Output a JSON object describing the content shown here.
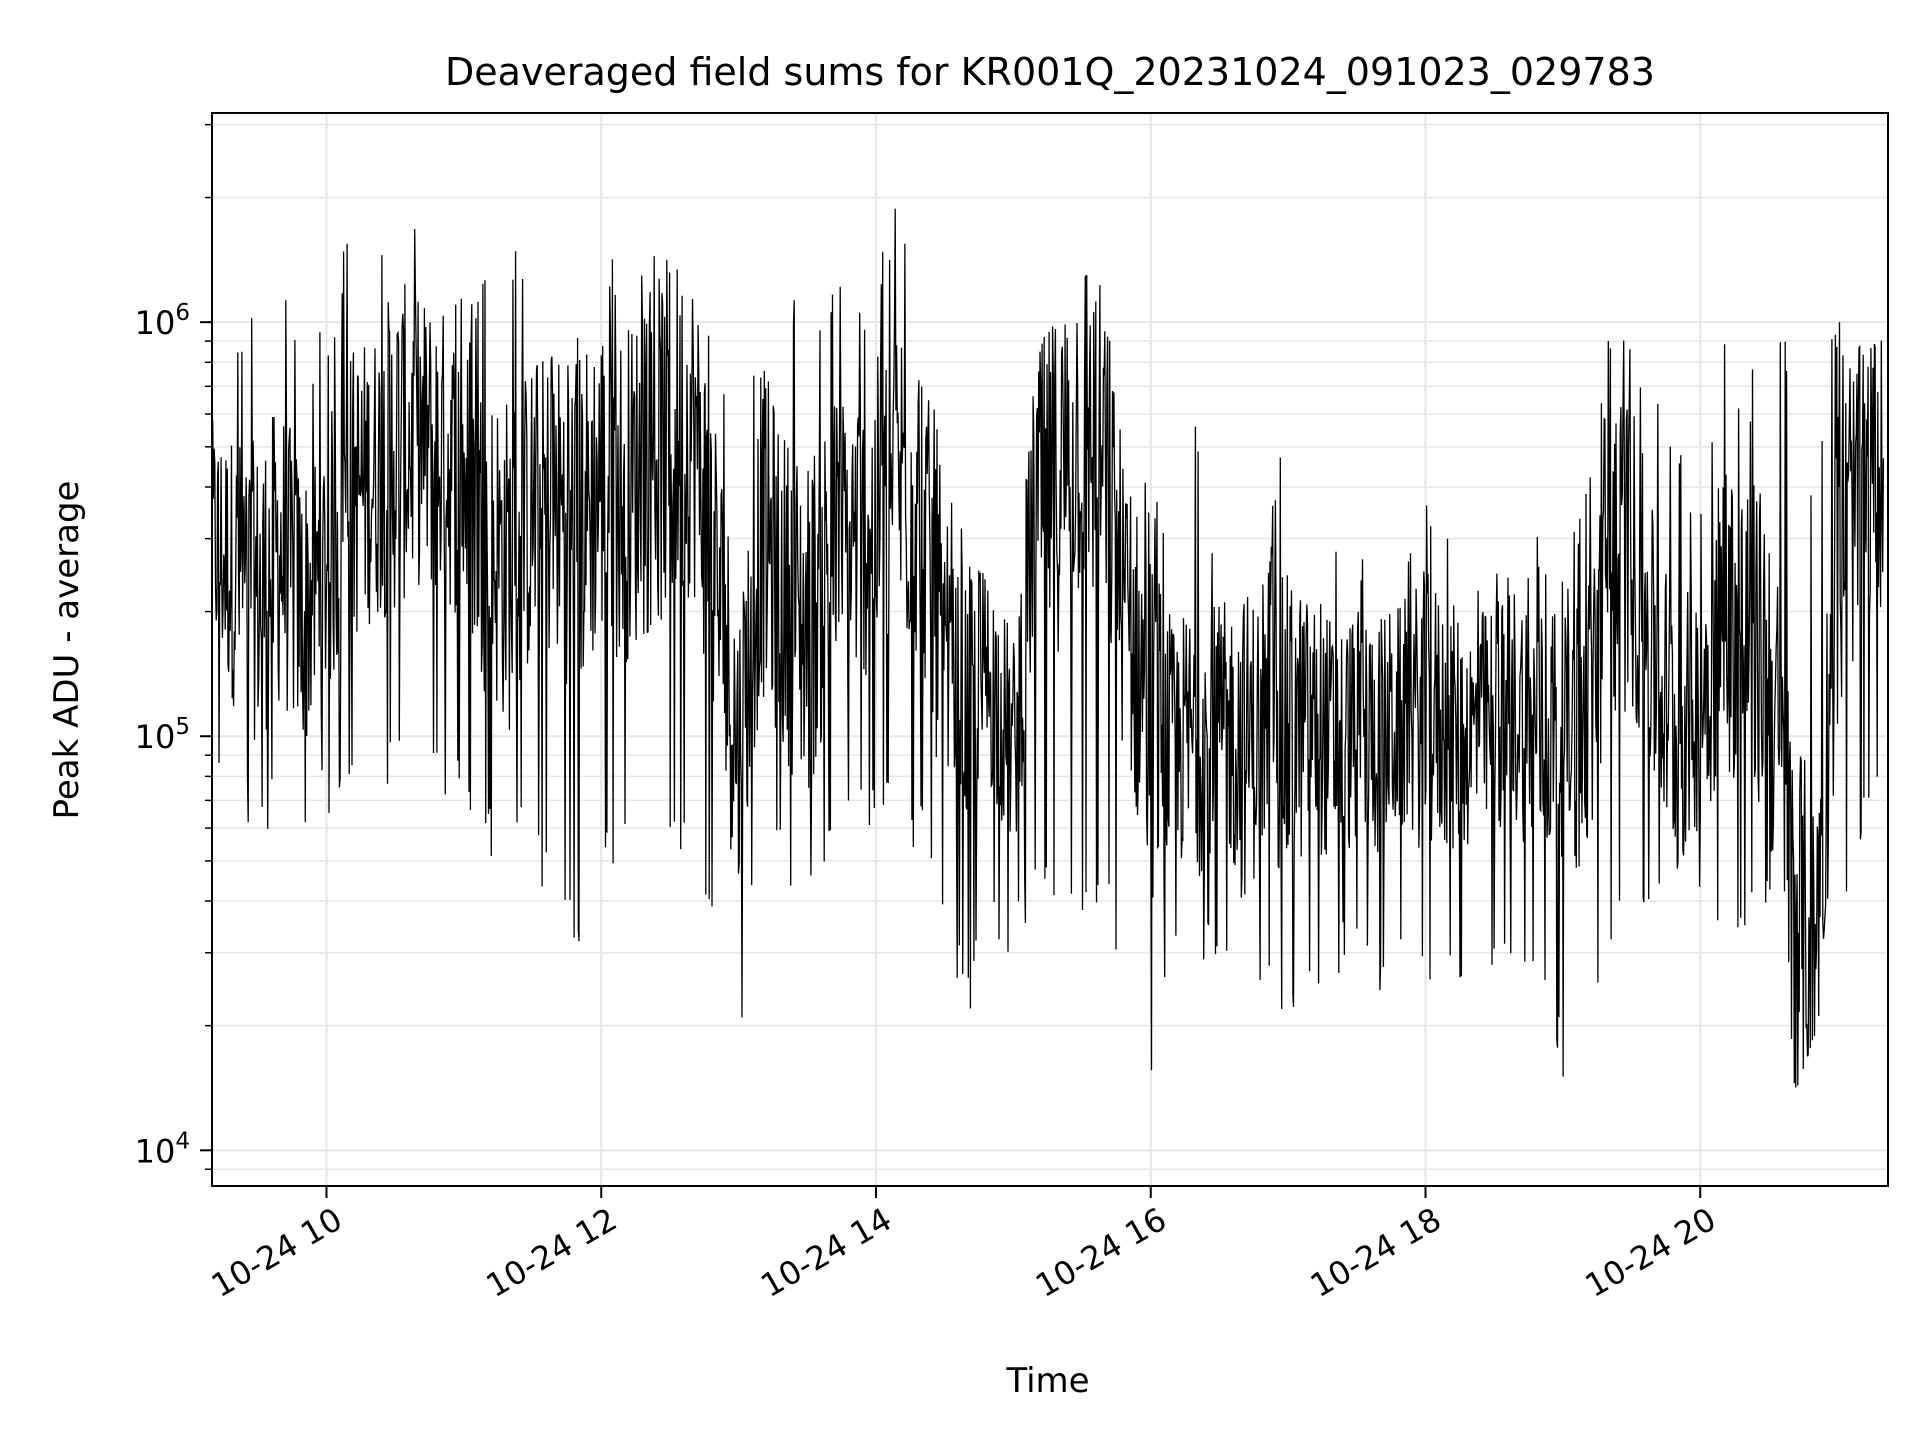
{
  "chart_data": {
    "type": "line",
    "title": "Deaveraged field sums for KR001Q_20231024_091023_029783",
    "xlabel": "Time",
    "ylabel": "Peak ADU - average",
    "y_scale": "log",
    "ylim": [
      8200,
      3200000
    ],
    "xlim": [
      "2023-10-24 09:10",
      "2023-10-24 21:22"
    ],
    "grid": true,
    "line_color": "#000000",
    "grid_color": "#e6e6e6",
    "x_ticks": [
      {
        "value": "2023-10-24 10:00",
        "label": "10-24 10"
      },
      {
        "value": "2023-10-24 12:00",
        "label": "10-24 12"
      },
      {
        "value": "2023-10-24 14:00",
        "label": "10-24 14"
      },
      {
        "value": "2023-10-24 16:00",
        "label": "10-24 16"
      },
      {
        "value": "2023-10-24 18:00",
        "label": "10-24 18"
      },
      {
        "value": "2023-10-24 20:00",
        "label": "10-24 20"
      }
    ],
    "y_ticks": [
      {
        "value": 10000,
        "base": "10",
        "exp": "4"
      },
      {
        "value": 100000,
        "base": "10",
        "exp": "5"
      },
      {
        "value": 1000000,
        "base": "10",
        "exp": "6"
      }
    ],
    "series": [
      {
        "x": [
          "2023-10-24 09:10",
          "2023-10-24 09:20",
          "2023-10-24 09:30",
          "2023-10-24 09:40",
          "2023-10-24 09:50",
          "2023-10-24 10:00",
          "2023-10-24 10:10",
          "2023-10-24 10:20",
          "2023-10-24 10:30",
          "2023-10-24 10:40",
          "2023-10-24 10:50",
          "2023-10-24 11:00",
          "2023-10-24 11:10",
          "2023-10-24 11:20",
          "2023-10-24 11:30",
          "2023-10-24 11:40",
          "2023-10-24 11:50",
          "2023-10-24 12:00",
          "2023-10-24 12:10",
          "2023-10-24 12:20",
          "2023-10-24 12:30",
          "2023-10-24 12:40",
          "2023-10-24 12:50",
          "2023-10-24 13:00",
          "2023-10-24 13:10",
          "2023-10-24 13:20",
          "2023-10-24 13:30",
          "2023-10-24 13:40",
          "2023-10-24 13:50",
          "2023-10-24 14:00",
          "2023-10-24 14:10",
          "2023-10-24 14:20",
          "2023-10-24 14:30",
          "2023-10-24 14:40",
          "2023-10-24 14:50",
          "2023-10-24 15:00",
          "2023-10-24 15:10",
          "2023-10-24 15:20",
          "2023-10-24 15:30",
          "2023-10-24 15:40",
          "2023-10-24 15:50",
          "2023-10-24 16:00",
          "2023-10-24 16:10",
          "2023-10-24 16:20",
          "2023-10-24 16:30",
          "2023-10-24 16:40",
          "2023-10-24 16:50",
          "2023-10-24 17:00",
          "2023-10-24 17:10",
          "2023-10-24 17:20",
          "2023-10-24 17:30",
          "2023-10-24 17:40",
          "2023-10-24 17:50",
          "2023-10-24 18:00",
          "2023-10-24 18:10",
          "2023-10-24 18:20",
          "2023-10-24 18:30",
          "2023-10-24 18:40",
          "2023-10-24 18:50",
          "2023-10-24 19:00",
          "2023-10-24 19:10",
          "2023-10-24 19:20",
          "2023-10-24 19:30",
          "2023-10-24 19:40",
          "2023-10-24 19:50",
          "2023-10-24 20:00",
          "2023-10-24 20:10",
          "2023-10-24 20:20",
          "2023-10-24 20:30",
          "2023-10-24 20:40",
          "2023-10-24 20:50",
          "2023-10-24 21:00",
          "2023-10-24 21:10",
          "2023-10-24 21:20"
        ],
        "y": [
          300000,
          250000,
          220000,
          280000,
          200000,
          260000,
          380000,
          420000,
          500000,
          520000,
          480000,
          420000,
          300000,
          260000,
          350000,
          360000,
          320000,
          420000,
          380000,
          450000,
          520000,
          560000,
          250000,
          90000,
          320000,
          220000,
          180000,
          280000,
          300000,
          340000,
          420000,
          380000,
          130000,
          120000,
          140000,
          90000,
          380000,
          420000,
          600000,
          450000,
          180000,
          110000,
          95000,
          100000,
          110000,
          95000,
          105000,
          100000,
          110000,
          95000,
          105000,
          100000,
          110000,
          115000,
          105000,
          100000,
          110000,
          120000,
          100000,
          110000,
          95000,
          300000,
          280000,
          150000,
          100000,
          120000,
          200000,
          180000,
          150000,
          40000,
          30000,
          250000,
          400000,
          450000
        ],
        "y_min": [
          80000,
          60000,
          55000,
          60000,
          55000,
          60000,
          80000,
          70000,
          75000,
          90000,
          70000,
          65000,
          50000,
          55000,
          45000,
          40000,
          30000,
          50000,
          45000,
          40000,
          50000,
          50000,
          30000,
          18000,
          50000,
          45000,
          40000,
          50000,
          55000,
          60000,
          55000,
          50000,
          30000,
          19000,
          35000,
          28000,
          40000,
          35000,
          30000,
          38000,
          22000,
          11000,
          28000,
          30000,
          25000,
          22000,
          20000,
          21000,
          22000,
          25000,
          28000,
          24000,
          23000,
          25000,
          22000,
          25000,
          23000,
          22000,
          25000,
          15000,
          23000,
          24000,
          35000,
          40000,
          30000,
          35000,
          28000,
          30000,
          40000,
          13000,
          19000,
          35000,
          50000,
          60000
        ],
        "y_max": [
          900000,
          1000000,
          1200000,
          1400000,
          1000000,
          1000000,
          1800000,
          1300000,
          2300000,
          1800000,
          1500000,
          1200000,
          1300000,
          1800000,
          1000000,
          1000000,
          1100000,
          1500000,
          1400000,
          1300000,
          2200000,
          1400000,
          900000,
          400000,
          1500000,
          1300000,
          1400000,
          1300000,
          1200000,
          1400000,
          2100000,
          1500000,
          400000,
          300000,
          350000,
          300000,
          800000,
          1200000,
          1300000,
          1300000,
          450000,
          450000,
          300000,
          600000,
          250000,
          550000,
          300000,
          600000,
          250000,
          350000,
          300000,
          300000,
          250000,
          450000,
          300000,
          250000,
          250000,
          300000,
          350000,
          250000,
          400000,
          1100000,
          900000,
          700000,
          600000,
          400000,
          900000,
          700000,
          1300000,
          800000,
          400000,
          1200000,
          900000,
          1000000
        ]
      }
    ]
  }
}
